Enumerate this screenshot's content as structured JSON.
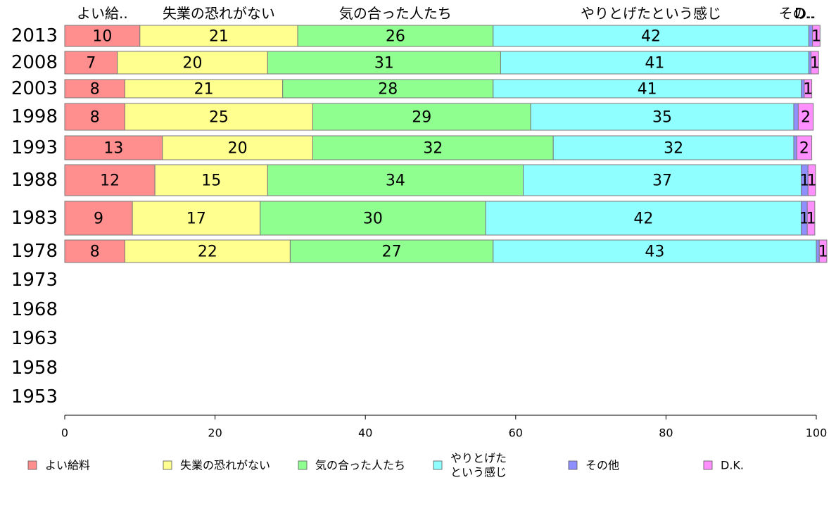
{
  "chart_data": {
    "type": "bar",
    "orientation": "horizontal",
    "stacked": true,
    "title": "",
    "xlabel": "",
    "ylabel": "",
    "xlim": [
      0,
      100
    ],
    "xticks": [
      0,
      20,
      40,
      60,
      80,
      100
    ],
    "grid": false,
    "legend_position": "bottom",
    "categories": [
      "2013",
      "2008",
      "2003",
      "1998",
      "1993",
      "1988",
      "1983",
      "1978",
      "1973",
      "1968",
      "1963",
      "1958",
      "1953"
    ],
    "series": [
      {
        "name": "よい給料",
        "short_label": "よい給..",
        "color": "#ff8f8f",
        "values": [
          10,
          7,
          8,
          8,
          13,
          12,
          9,
          8,
          null,
          null,
          null,
          null,
          null
        ]
      },
      {
        "name": "失業の恐れがない",
        "short_label": "失業の恐れがない",
        "color": "#ffff8f",
        "values": [
          21,
          20,
          21,
          25,
          20,
          15,
          17,
          22,
          null,
          null,
          null,
          null,
          null
        ]
      },
      {
        "name": "気の合った人たち",
        "short_label": "気の合った人たち",
        "color": "#8fff8f",
        "values": [
          26,
          31,
          28,
          29,
          32,
          34,
          30,
          27,
          null,
          null,
          null,
          null,
          null
        ]
      },
      {
        "name": "やりとげたという感じ",
        "legend_lines": [
          "やりとげた",
          "という感じ"
        ],
        "short_label": "やりとげたという感じ",
        "color": "#8fffff",
        "values": [
          42,
          41,
          41,
          35,
          32,
          37,
          42,
          43,
          null,
          null,
          null,
          null,
          null
        ]
      },
      {
        "name": "その他",
        "short_label": "その..",
        "color": "#8f8fff",
        "values": [
          0.5,
          0.3,
          0.4,
          0.6,
          0.4,
          0.9,
          0.8,
          0.4,
          null,
          null,
          null,
          null,
          null
        ]
      },
      {
        "name": "D.K.",
        "short_label": "D..",
        "color": "#ff8fff",
        "values": [
          1,
          1,
          1,
          2,
          2,
          1,
          1,
          1,
          null,
          null,
          null,
          null,
          null
        ]
      }
    ],
    "data_labels": [
      [
        "10",
        "21",
        "26",
        "42",
        "",
        "1"
      ],
      [
        "7",
        "20",
        "31",
        "41",
        "",
        "1"
      ],
      [
        "8",
        "21",
        "28",
        "41",
        "",
        "1"
      ],
      [
        "8",
        "25",
        "29",
        "35",
        "",
        "2"
      ],
      [
        "13",
        "20",
        "32",
        "32",
        "",
        "2"
      ],
      [
        "12",
        "15",
        "34",
        "37",
        "1",
        "1"
      ],
      [
        "9",
        "17",
        "30",
        "42",
        "1",
        "1"
      ],
      [
        "8",
        "22",
        "27",
        "43",
        "",
        "1"
      ]
    ]
  }
}
